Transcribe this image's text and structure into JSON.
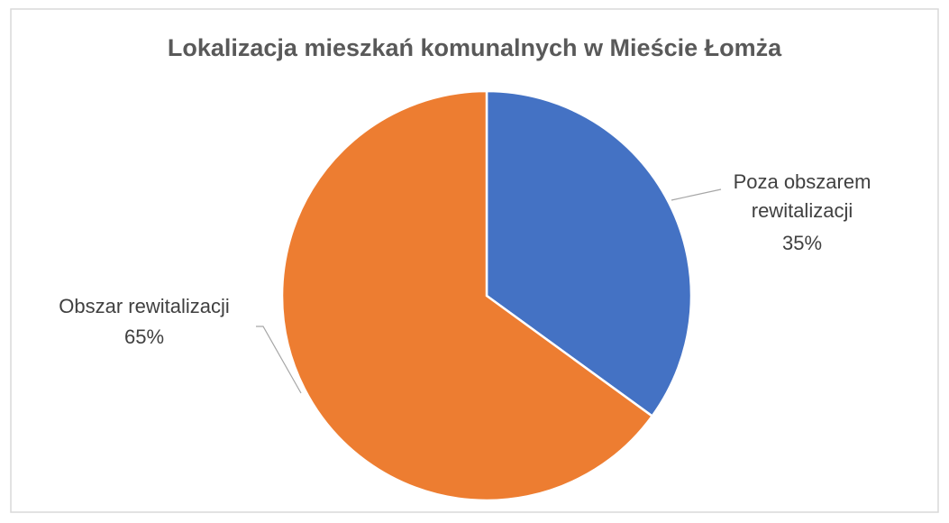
{
  "chart_data": {
    "type": "pie",
    "title": "Lokalizacja mieszkań komunalnych w Mieście Łomża",
    "categories": [
      "Poza obszarem rewitalizacji",
      "Obszar rewitalizacji"
    ],
    "values": [
      35,
      65
    ],
    "value_labels": [
      "35%",
      "65%"
    ],
    "colors": [
      "#4472c4",
      "#ed7d31"
    ]
  }
}
